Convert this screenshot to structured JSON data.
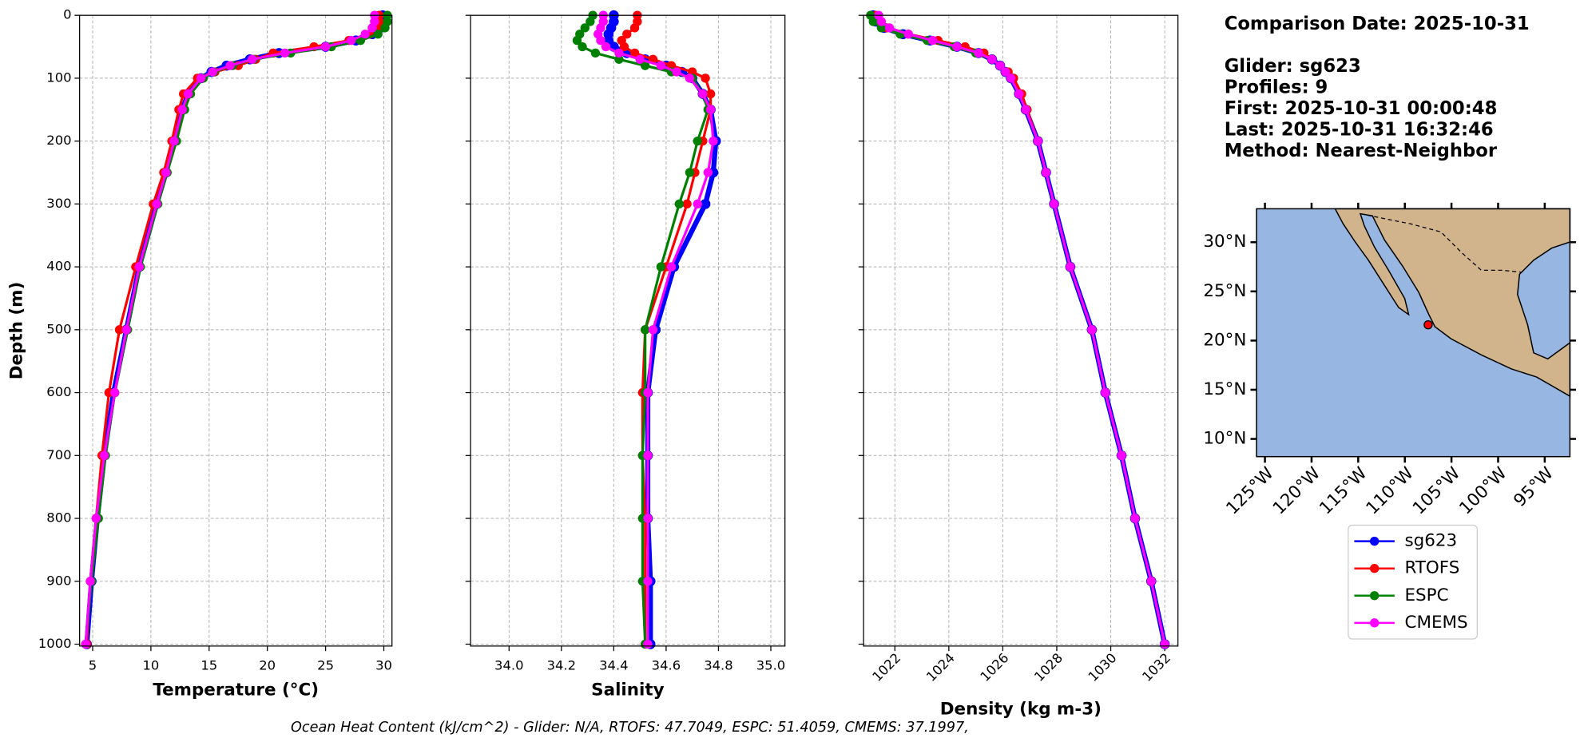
{
  "chart_data": [
    {
      "type": "profile",
      "xlabel": "Temperature (°C)",
      "ylabel": "Depth (m)",
      "y": [
        0,
        10,
        20,
        30,
        40,
        50,
        60,
        70,
        80,
        90,
        100,
        125,
        150,
        200,
        250,
        300,
        400,
        500,
        600,
        700,
        800,
        900,
        1000
      ],
      "series": [
        {
          "name": "sg623",
          "color": "#0000ff",
          "values": [
            29.9,
            29.9,
            29.7,
            29.0,
            27.6,
            25.0,
            21.0,
            18.5,
            16.5,
            15.2,
            14.3,
            13.2,
            12.7,
            12.0,
            11.3,
            10.5,
            9.0,
            7.9,
            6.8,
            6.0,
            5.4,
            4.9,
            4.5
          ]
        },
        {
          "name": "RTOFS",
          "color": "#ff0000",
          "values": [
            29.6,
            29.6,
            29.4,
            28.8,
            27.0,
            24.0,
            20.5,
            19.0,
            17.5,
            15.5,
            14.0,
            12.8,
            12.4,
            11.8,
            11.1,
            10.2,
            8.7,
            7.3,
            6.4,
            5.8,
            5.3,
            4.8,
            4.5
          ]
        },
        {
          "name": "ESPC",
          "color": "#008000",
          "values": [
            30.3,
            30.3,
            30.1,
            29.5,
            28.0,
            25.5,
            22.0,
            18.8,
            17.0,
            15.4,
            14.5,
            13.4,
            12.9,
            12.2,
            11.4,
            10.6,
            9.1,
            8.0,
            6.9,
            6.1,
            5.5,
            4.9,
            4.4
          ]
        },
        {
          "name": "CMEMS",
          "color": "#ff00ff",
          "values": [
            29.2,
            29.2,
            29.0,
            28.4,
            27.2,
            25.0,
            21.5,
            18.7,
            16.8,
            15.3,
            14.3,
            13.2,
            12.7,
            12.0,
            11.3,
            10.5,
            9.0,
            7.9,
            6.9,
            6.0,
            5.3,
            4.8,
            4.4
          ]
        }
      ],
      "xlim": [
        3.88,
        30.7
      ],
      "xticks": [
        5,
        10,
        15,
        20,
        25,
        30
      ],
      "ylim": [
        1003,
        0
      ],
      "yticks": [
        0,
        100,
        200,
        300,
        400,
        500,
        600,
        700,
        800,
        900,
        1000
      ],
      "grid": true
    },
    {
      "type": "profile",
      "xlabel": "Salinity",
      "y": [
        0,
        10,
        20,
        30,
        40,
        50,
        60,
        70,
        80,
        90,
        100,
        125,
        150,
        200,
        250,
        300,
        400,
        500,
        600,
        700,
        800,
        900,
        1000
      ],
      "series": [
        {
          "name": "sg623",
          "color": "#0000ff",
          "values": [
            34.4,
            34.4,
            34.39,
            34.38,
            34.38,
            34.4,
            34.45,
            34.52,
            34.6,
            34.66,
            34.7,
            34.74,
            34.77,
            34.79,
            34.78,
            34.75,
            34.63,
            34.56,
            34.53,
            34.53,
            34.53,
            34.54,
            34.54
          ]
        },
        {
          "name": "RTOFS",
          "color": "#ff0000",
          "values": [
            34.49,
            34.49,
            34.48,
            34.45,
            34.43,
            34.44,
            34.48,
            34.55,
            34.62,
            34.7,
            34.75,
            34.77,
            34.77,
            34.74,
            34.71,
            34.68,
            34.6,
            34.52,
            34.51,
            34.51,
            34.52,
            34.52,
            34.52
          ]
        },
        {
          "name": "ESPC",
          "color": "#008000",
          "values": [
            34.32,
            34.31,
            34.29,
            34.27,
            34.26,
            34.28,
            34.33,
            34.42,
            34.52,
            34.62,
            34.7,
            34.74,
            34.76,
            34.72,
            34.69,
            34.65,
            34.58,
            34.52,
            34.52,
            34.51,
            34.51,
            34.51,
            34.52
          ]
        },
        {
          "name": "CMEMS",
          "color": "#ff00ff",
          "values": [
            34.36,
            34.36,
            34.35,
            34.34,
            34.35,
            34.37,
            34.42,
            34.5,
            34.58,
            34.64,
            34.69,
            34.74,
            34.77,
            34.78,
            34.76,
            34.72,
            34.62,
            34.55,
            34.53,
            34.53,
            34.53,
            34.53,
            34.53
          ]
        }
      ],
      "xlim": [
        33.853,
        35.054
      ],
      "xticks": [
        {
          "value": 34,
          "label": "34.0"
        },
        34.2,
        34.4,
        34.6,
        34.8,
        {
          "value": 35,
          "label": "35.0"
        }
      ],
      "ylim": [
        1003,
        0
      ],
      "yticks": [
        0,
        100,
        200,
        300,
        400,
        500,
        600,
        700,
        800,
        900,
        1000
      ],
      "grid": true
    },
    {
      "type": "profile",
      "xlabel": "Density (kg m-3)",
      "xtick_rotation": 45,
      "y": [
        0,
        10,
        20,
        30,
        40,
        50,
        60,
        70,
        80,
        90,
        100,
        125,
        150,
        200,
        250,
        300,
        400,
        500,
        600,
        700,
        800,
        900,
        1000
      ],
      "series": [
        {
          "name": "sg623",
          "color": "#0000ff",
          "values": [
            1021.2,
            1021.3,
            1021.6,
            1022.3,
            1023.3,
            1024.3,
            1025.1,
            1025.6,
            1025.9,
            1026.1,
            1026.3,
            1026.6,
            1026.85,
            1027.3,
            1027.6,
            1027.9,
            1028.5,
            1029.3,
            1029.8,
            1030.4,
            1030.9,
            1031.5,
            1032.0
          ]
        },
        {
          "name": "RTOFS",
          "color": "#ff0000",
          "values": [
            1021.3,
            1021.4,
            1021.7,
            1022.5,
            1023.6,
            1024.6,
            1025.3,
            1025.6,
            1025.9,
            1026.2,
            1026.4,
            1026.7,
            1026.9,
            1027.3,
            1027.6,
            1027.9,
            1028.5,
            1029.3,
            1029.8,
            1030.4,
            1030.9,
            1031.5,
            1032.0
          ]
        },
        {
          "name": "ESPC",
          "color": "#008000",
          "values": [
            1021.1,
            1021.2,
            1021.5,
            1022.2,
            1023.2,
            1024.2,
            1025.0,
            1025.6,
            1025.9,
            1026.1,
            1026.3,
            1026.6,
            1026.85,
            1027.3,
            1027.6,
            1027.9,
            1028.5,
            1029.3,
            1029.8,
            1030.4,
            1030.9,
            1031.5,
            1032.0
          ]
        },
        {
          "name": "CMEMS",
          "color": "#ff00ff",
          "values": [
            1021.4,
            1021.5,
            1021.8,
            1022.5,
            1023.4,
            1024.3,
            1025.1,
            1025.6,
            1025.9,
            1026.1,
            1026.3,
            1026.6,
            1026.85,
            1027.3,
            1027.6,
            1027.9,
            1028.5,
            1029.3,
            1029.8,
            1030.4,
            1030.9,
            1031.5,
            1032.0
          ]
        }
      ],
      "xlim": [
        1020.84,
        1032.49
      ],
      "xticks": [
        1022,
        1024,
        1026,
        1028,
        1030,
        1032
      ],
      "ylim": [
        1003,
        0
      ],
      "yticks": [
        0,
        100,
        200,
        300,
        400,
        500,
        600,
        700,
        800,
        900,
        1000
      ],
      "grid": true
    },
    {
      "type": "map",
      "xtick_rotation": 45,
      "lon": [
        -107.5
      ],
      "lat": [
        21.6
      ],
      "color": "#ff0000",
      "xlim": [
        -125.9,
        -92.3
      ],
      "ylim": [
        8.2,
        33.4
      ],
      "xticks": [
        {
          "value": -125,
          "label": "125°W"
        },
        {
          "value": -120,
          "label": "120°W"
        },
        {
          "value": -115,
          "label": "115°W"
        },
        {
          "value": -110,
          "label": "110°W"
        },
        {
          "value": -105,
          "label": "105°W"
        },
        {
          "value": -100,
          "label": "100°W"
        },
        {
          "value": -95,
          "label": "95°W"
        }
      ],
      "yticks": [
        {
          "value": 10,
          "label": "10°N"
        },
        {
          "value": 15,
          "label": "15°N"
        },
        {
          "value": 20,
          "label": "20°N"
        },
        {
          "value": 25,
          "label": "25°N"
        },
        {
          "value": 30,
          "label": "30°N"
        }
      ]
    }
  ],
  "info": [
    "Comparison Date: 2025-10-31",
    "Glider: sg623",
    "Profiles: 9",
    "First: 2025-10-31 00:00:48",
    "Last: 2025-10-31 16:32:46",
    "Method: Nearest-Neighbor"
  ],
  "footer": "Ocean Heat Content (kJ/cm^2) - Glider: N/A,  RTOFS: 47.7049,  ESPC: 51.4059,  CMEMS: 37.1997,"
}
